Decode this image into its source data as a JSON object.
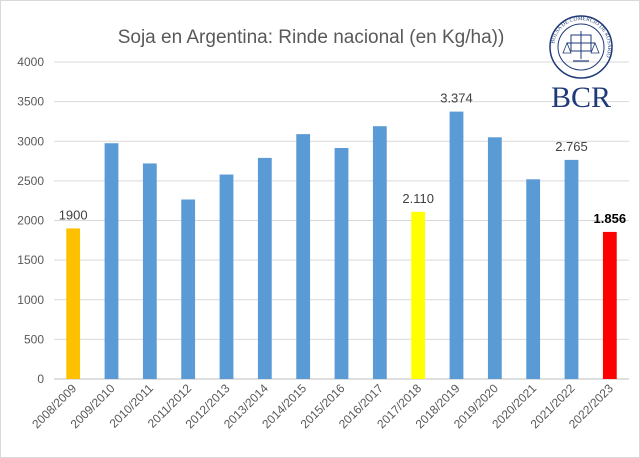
{
  "chart_data": {
    "type": "bar",
    "title": "Soja en Argentina: Rinde nacional (en Kg/ha))",
    "xlabel": "",
    "ylabel": "",
    "ylim": [
      0,
      4000
    ],
    "yticks": [
      0,
      500,
      1000,
      1500,
      2000,
      2500,
      3000,
      3500,
      4000
    ],
    "grid": true,
    "legend": "none",
    "categories": [
      "2008/2009",
      "2009/2010",
      "2010/2011",
      "2011/2012",
      "2012/2013",
      "2013/2014",
      "2014/2015",
      "2015/2016",
      "2016/2017",
      "2017/2018",
      "2018/2019",
      "2019/2020",
      "2020/2021",
      "2021/2022",
      "2022/2023"
    ],
    "values": [
      1900,
      2975,
      2720,
      2265,
      2580,
      2790,
      3090,
      2915,
      3190,
      2110,
      3374,
      3050,
      2520,
      2765,
      1856
    ],
    "colors": [
      "#FFC000",
      "#5B9BD5",
      "#5B9BD5",
      "#5B9BD5",
      "#5B9BD5",
      "#5B9BD5",
      "#5B9BD5",
      "#5B9BD5",
      "#5B9BD5",
      "#FFFF00",
      "#5B9BD5",
      "#5B9BD5",
      "#5B9BD5",
      "#5B9BD5",
      "#FF0000"
    ],
    "data_labels": [
      {
        "index": 0,
        "text": "1900",
        "bold": false
      },
      {
        "index": 9,
        "text": "2.110",
        "bold": false
      },
      {
        "index": 10,
        "text": "3.374",
        "bold": false
      },
      {
        "index": 13,
        "text": "2.765",
        "bold": false
      },
      {
        "index": 14,
        "text": "1.856",
        "bold": true
      }
    ]
  },
  "logo": {
    "text": "BCR",
    "seal_text": "BOLSA DE COMERCIO DE ROSARIO",
    "color": "#1F3A78"
  }
}
